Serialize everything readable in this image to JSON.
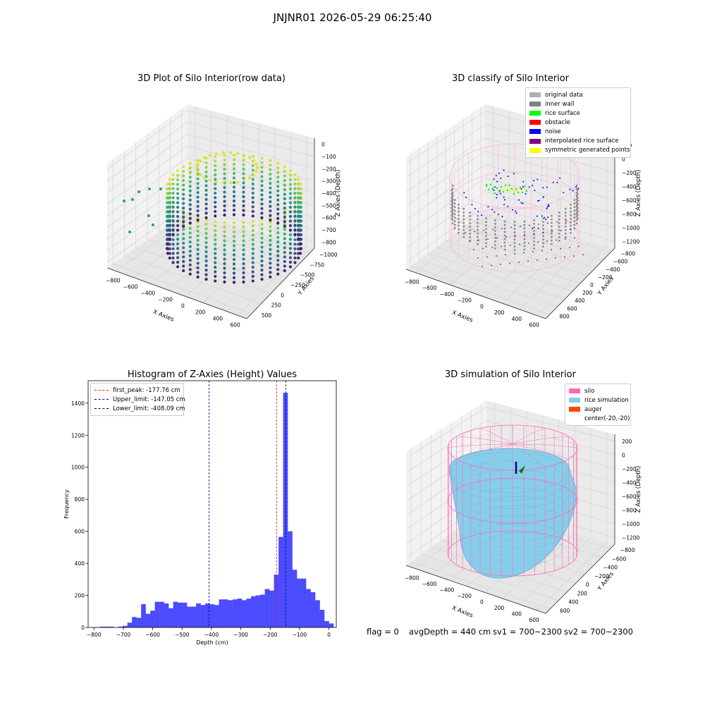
{
  "suptitle": "JNJNR01 2026-05-29 06:25:40",
  "footer": {
    "flag": "flag = 0",
    "avg_depth": "avgDepth = 440 cm",
    "sv1": "sv1 = 700~2300",
    "sv2": "sv2 = 700~2300"
  },
  "colors": {
    "histogram_bar": "#4b4bff",
    "first_peak_line": "#dc143c",
    "limit_line": "#00008b",
    "silo_wire": "#ff69b4",
    "rice_sim": "#87ceeb",
    "auger": "#ff4500"
  },
  "chart_data": [
    {
      "type": "scatter3d",
      "title": "3D Plot of Silo Interior(row data)",
      "xlabel": "X Axies",
      "ylabel": "Y Axies",
      "zlabel": "Z Axies (Depth)",
      "x_ticks": [
        "−800",
        "−600",
        "−400",
        "−200",
        "0",
        "200",
        "400",
        "600"
      ],
      "y_ticks": [
        "500",
        "250",
        "0",
        "−250",
        "−500",
        "−750",
        "−1000"
      ],
      "z_ticks": [
        "0",
        "−100",
        "−200",
        "−300",
        "−400",
        "−500",
        "−600",
        "−700",
        "−800"
      ],
      "colormap": "viridis"
    },
    {
      "type": "scatter3d",
      "title": "3D classify of Silo Interior",
      "xlabel": "X Axies",
      "ylabel": "Y Axies",
      "zlabel": "Z Axies (Depth)",
      "x_ticks": [
        "−800",
        "−600",
        "−400",
        "−200",
        "0",
        "200",
        "400",
        "600"
      ],
      "y_ticks": [
        "800",
        "600",
        "400",
        "200",
        "0",
        "−200",
        "−400",
        "−600",
        "−800"
      ],
      "z_ticks": [
        "200",
        "0",
        "−200",
        "−400",
        "−600",
        "−800",
        "−1000",
        "−1200"
      ],
      "legend": [
        {
          "label": "original data",
          "color": "#b0b0b0"
        },
        {
          "label": "inner wall",
          "color": "#808080"
        },
        {
          "label": "rice surface",
          "color": "#00ff00"
        },
        {
          "label": "obstacle",
          "color": "#ff0000"
        },
        {
          "label": "noise",
          "color": "#0000ff"
        },
        {
          "label": "interpolated rice surface",
          "color": "#800080"
        },
        {
          "label": "symmetric generated points",
          "color": "#ffff00"
        }
      ]
    },
    {
      "type": "bar",
      "title": "Histogram of Z-Axies (Height) Values",
      "xlabel": "Depth (cm)",
      "ylabel": "Frequency",
      "xlim": [
        -820,
        25
      ],
      "ylim": [
        0,
        1540
      ],
      "x_ticks": [
        -800,
        -700,
        -600,
        -500,
        -400,
        -300,
        -200,
        -100,
        0
      ],
      "x_tick_labels": [
        "−800",
        "−700",
        "−600",
        "−500",
        "−400",
        "−300",
        "−200",
        "−100",
        "0"
      ],
      "y_ticks": [
        0,
        200,
        400,
        600,
        800,
        1000,
        1200,
        1400
      ],
      "bin_start": -780,
      "bin_width": 15.6,
      "frequencies": [
        5,
        5,
        5,
        0,
        5,
        10,
        30,
        65,
        60,
        145,
        85,
        105,
        160,
        160,
        150,
        120,
        160,
        155,
        155,
        130,
        130,
        150,
        140,
        150,
        145,
        140,
        175,
        175,
        170,
        175,
        180,
        170,
        180,
        195,
        200,
        205,
        240,
        230,
        330,
        565,
        1465,
        600,
        360,
        305,
        305,
        240,
        220,
        170,
        110,
        40,
        25
      ],
      "lines": [
        {
          "label": "first_peak: -177.76 cm",
          "x": -177.76,
          "color": "#dc143c"
        },
        {
          "label": "Upper_limit: -147.05 cm",
          "x": -147.05,
          "color": "#00008b"
        },
        {
          "label": "Lower_limit: -408.09 cm",
          "x": -408.09,
          "color": "#00008b"
        }
      ],
      "legend_position": "top-left"
    },
    {
      "type": "surface3d",
      "title": "3D simulation of Silo Interior",
      "xlabel": "X Axies",
      "ylabel": "Y Axies",
      "zlabel": "Z Axies (Depth)",
      "x_ticks": [
        "−800",
        "−600",
        "−400",
        "−200",
        "0",
        "200",
        "400",
        "600"
      ],
      "y_ticks": [
        "600",
        "400",
        "200",
        "0",
        "−200",
        "−400",
        "−600",
        "−800"
      ],
      "z_ticks": [
        "200",
        "0",
        "−200",
        "−400",
        "−600",
        "−800",
        "−1000",
        "−1200"
      ],
      "legend": [
        {
          "label": "silo",
          "color": "#ff69b4"
        },
        {
          "label": "rice simulation",
          "color": "#87ceeb"
        },
        {
          "label": "auger",
          "color": "#ff4500"
        },
        {
          "label": "center(-20,-20)",
          "color": ""
        }
      ]
    }
  ]
}
